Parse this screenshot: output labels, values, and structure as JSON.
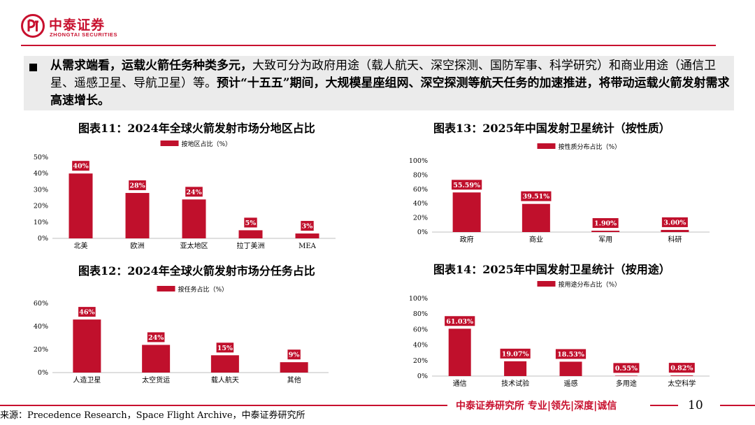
{
  "brand": {
    "name_cn": "中泰证券",
    "name_en": "ZHONGTAI SECURITIES",
    "color": "#c8102e"
  },
  "intro": {
    "bold_part": "从需求端看，运载火箭任务种类多元，",
    "normal_part": "大致可分为政府用途（载人航天、深空探测、国防军事、科学研究）和商业用途（通信卫星、遥感卫星、导航卫星）等。",
    "bold_part2": "预计“十五五”期间，大规模星座组网、深空探测等航天任务的加速推进，将带动运载火箭发射需求高速增长。"
  },
  "chart_data": [
    {
      "id": "c11",
      "type": "bar",
      "title": "图表11：2024年全球火箭发射市场分地区占比",
      "series_name": "按地区占比（%）",
      "categories": [
        "北美",
        "欧洲",
        "亚太地区",
        "拉丁美洲",
        "MEA"
      ],
      "values": [
        40,
        28,
        24,
        5,
        3
      ],
      "value_labels": [
        "40%",
        "28%",
        "24%",
        "5%",
        "3%"
      ],
      "ylim": [
        0,
        50
      ],
      "yticks": [
        0,
        10,
        20,
        30,
        40,
        50
      ],
      "ytick_labels": [
        "0%",
        "10%",
        "20%",
        "30%",
        "40%",
        "50%"
      ],
      "color": "#c0102c",
      "legend": "top"
    },
    {
      "id": "c13",
      "type": "bar",
      "title": "图表13：2025年中国发射卫星统计（按性质）",
      "series_name": "按性质分布占比（%）",
      "categories": [
        "政府",
        "商业",
        "军用",
        "科研"
      ],
      "values": [
        55.59,
        39.51,
        1.9,
        3.0
      ],
      "value_labels": [
        "55.59%",
        "39.51%",
        "1.90%",
        "3.00%"
      ],
      "ylim": [
        0,
        100
      ],
      "yticks": [
        0,
        20,
        40,
        60,
        80,
        100
      ],
      "ytick_labels": [
        "0%",
        "20%",
        "40%",
        "60%",
        "80%",
        "100%"
      ],
      "color": "#c0102c",
      "legend": "top"
    },
    {
      "id": "c12",
      "type": "bar",
      "title": "图表12：2024年全球火箭发射市场分任务占比",
      "series_name": "按任务占比（%）",
      "categories": [
        "人造卫星",
        "太空货运",
        "载人航天",
        "其他"
      ],
      "values": [
        46,
        24,
        15,
        9
      ],
      "value_labels": [
        "46%",
        "24%",
        "15%",
        "9%"
      ],
      "ylim": [
        0,
        60
      ],
      "yticks": [
        0,
        20,
        40,
        60
      ],
      "ytick_labels": [
        "0%",
        "20%",
        "40%",
        "60%"
      ],
      "color": "#c0102c",
      "legend": "top"
    },
    {
      "id": "c14",
      "type": "bar",
      "title": "图表14：2025年中国发射卫星统计（按用途）",
      "series_name": "按用途分布占比（%）",
      "categories": [
        "通信",
        "技术试验",
        "遥感",
        "多用途",
        "太空科学"
      ],
      "values": [
        61.03,
        19.07,
        18.53,
        0.55,
        0.82
      ],
      "value_labels": [
        "61.03%",
        "19.07%",
        "18.53%",
        "0.55%",
        "0.82%"
      ],
      "ylim": [
        0,
        100
      ],
      "yticks": [
        0,
        20,
        40,
        60,
        80,
        100
      ],
      "ytick_labels": [
        "0%",
        "20%",
        "40%",
        "60%",
        "80%",
        "100%"
      ],
      "color": "#c0102c",
      "legend": "top"
    }
  ],
  "footer": {
    "source": "来源：Precedence Research，Space Flight Archive，中泰证券研究所",
    "tagline": "中泰证券研究所 专业|领先|深度|诚信",
    "page": "10"
  }
}
